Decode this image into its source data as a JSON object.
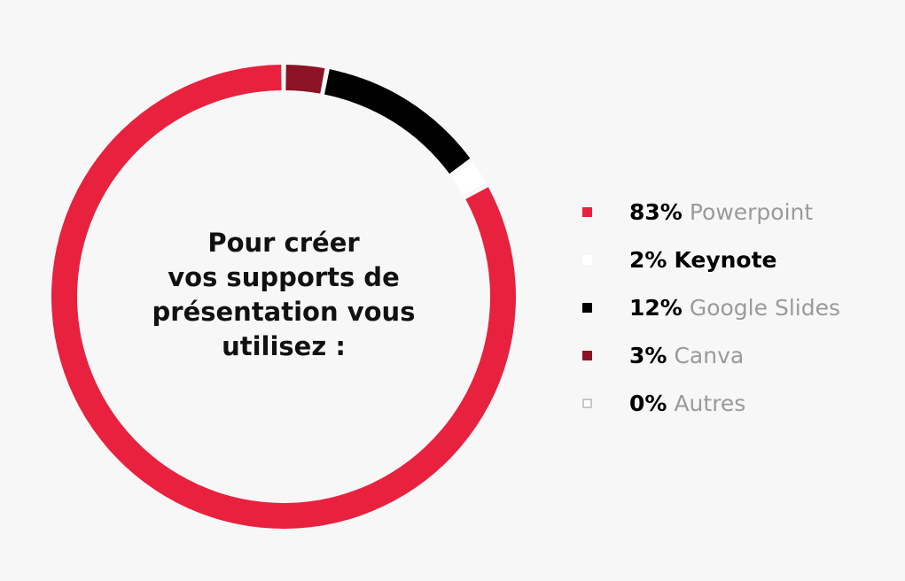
{
  "chart_data": {
    "type": "pie",
    "title": "Pour créer vos supports de présentation vous utilisez :",
    "title_lines": [
      "Pour créer",
      "vos supports de",
      "présentation vous",
      "utilisez :"
    ],
    "legend_position": "right",
    "ring_colors": {
      "slice_boundary": "#f7f7f7",
      "inner": "#f7f7f7"
    },
    "slices": [
      {
        "name": "Powerpoint",
        "value": 83,
        "value_label": "83%",
        "color": "#e8213e",
        "swatch_border": "",
        "emphasized": false,
        "legend_order": 0,
        "ring_order": 4
      },
      {
        "name": "Keynote",
        "value": 2,
        "value_label": "2%",
        "color": "#ffffff",
        "swatch_border": "",
        "emphasized": true,
        "legend_order": 1,
        "ring_order": 3
      },
      {
        "name": "Google Slides",
        "value": 12,
        "value_label": "12%",
        "color": "#000000",
        "swatch_border": "",
        "emphasized": false,
        "legend_order": 2,
        "ring_order": 2
      },
      {
        "name": "Canva",
        "value": 3,
        "value_label": "3%",
        "color": "#8b1325",
        "swatch_border": "",
        "emphasized": false,
        "legend_order": 3,
        "ring_order": 1
      },
      {
        "name": "Autres",
        "value": 0,
        "value_label": "0%",
        "color": "#ffffff",
        "swatch_border": "#c8c8c8",
        "emphasized": false,
        "legend_order": 4,
        "ring_order": 0
      }
    ]
  }
}
